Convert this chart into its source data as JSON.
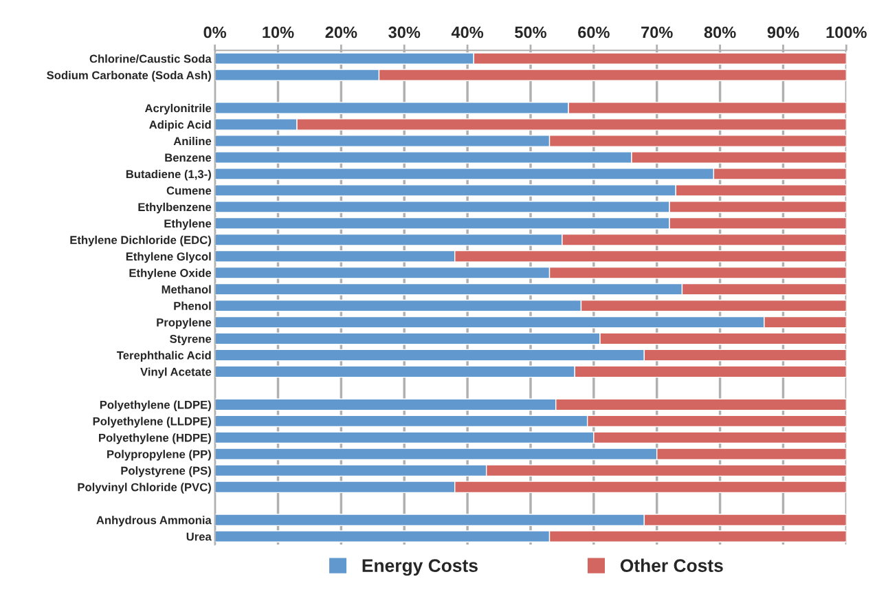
{
  "chart_data": {
    "type": "bar",
    "orientation": "horizontal",
    "stacked": true,
    "categories": [
      "Chlorine/Caustic Soda",
      "Sodium Carbonate (Soda Ash)",
      null,
      "Acrylonitrile",
      "Adipic Acid",
      "Aniline",
      "Benzene",
      "Butadiene (1,3-)",
      "Cumene",
      "Ethylbenzene",
      "Ethylene",
      "Ethylene Dichloride (EDC)",
      "Ethylene Glycol",
      "Ethylene Oxide",
      "Methanol",
      "Phenol",
      "Propylene",
      "Styrene",
      "Terephthalic Acid",
      "Vinyl Acetate",
      null,
      "Polyethylene (LDPE)",
      "Polyethylene (LLDPE)",
      "Polyethylene (HDPE)",
      "Polypropylene (PP)",
      "Polystyrene (PS)",
      "Polyvinyl Chloride (PVC)",
      null,
      "Anhydrous Ammonia",
      "Urea"
    ],
    "series": [
      {
        "name": "Energy Costs",
        "color": "#6199cf",
        "values": [
          41,
          26,
          null,
          56,
          13,
          53,
          66,
          79,
          73,
          72,
          72,
          55,
          38,
          53,
          74,
          58,
          87,
          61,
          68,
          57,
          null,
          54,
          59,
          60,
          70,
          43,
          38,
          null,
          68,
          53
        ]
      },
      {
        "name": "Other Costs",
        "color": "#d36661",
        "values": [
          59,
          74,
          null,
          44,
          87,
          47,
          34,
          21,
          27,
          28,
          28,
          45,
          62,
          47,
          26,
          42,
          13,
          39,
          32,
          43,
          null,
          46,
          41,
          40,
          30,
          57,
          62,
          null,
          32,
          47
        ]
      }
    ],
    "xlim": [
      0,
      100
    ],
    "xticks": [
      {
        "value": 0,
        "label": "0%"
      },
      {
        "value": 10,
        "label": "10%"
      },
      {
        "value": 20,
        "label": "20%"
      },
      {
        "value": 30,
        "label": "30%"
      },
      {
        "value": 40,
        "label": "40%"
      },
      {
        "value": 50,
        "label": "50%"
      },
      {
        "value": 60,
        "label": "60%"
      },
      {
        "value": 70,
        "label": "70%"
      },
      {
        "value": 80,
        "label": "80%"
      },
      {
        "value": 90,
        "label": "90%"
      },
      {
        "value": 100,
        "label": "100%"
      }
    ],
    "grid": "x",
    "legend": "bottom"
  }
}
